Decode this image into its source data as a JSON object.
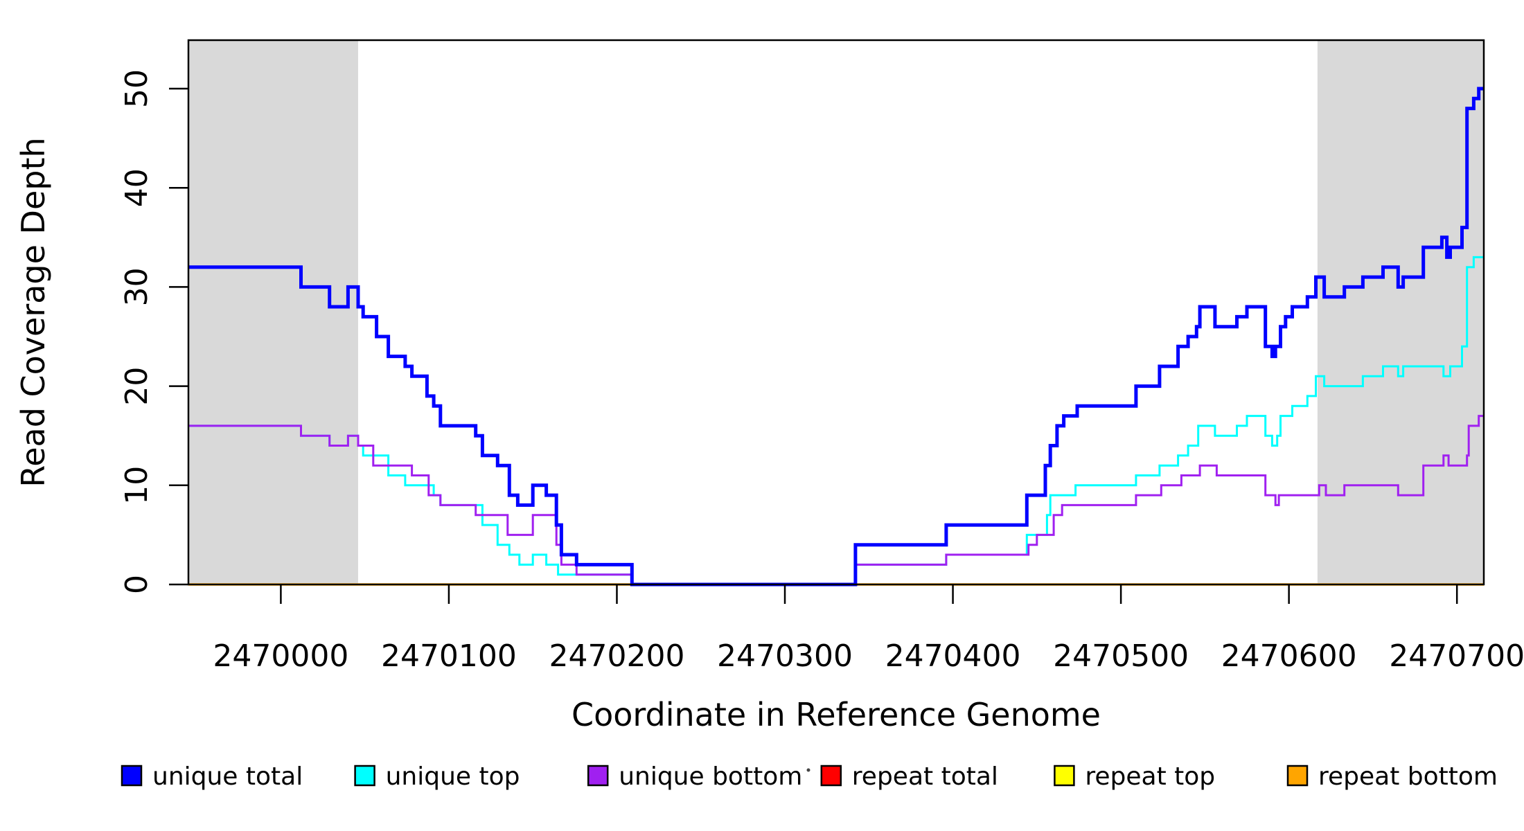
{
  "chart_data": {
    "type": "line",
    "subtype": "step-after",
    "title": "",
    "xlabel": "Coordinate in Reference Genome",
    "ylabel": "Read Coverage Depth",
    "xlim": [
      2469945,
      2470716
    ],
    "ylim": [
      0,
      55
    ],
    "x_ticks": [
      2470000,
      2470100,
      2470200,
      2470300,
      2470400,
      2470500,
      2470600,
      2470700
    ],
    "y_ticks": [
      0,
      10,
      20,
      30,
      40,
      50
    ],
    "grid": false,
    "background_color": "#ffffff",
    "band_color": "#d9d9d9",
    "axis_color": "#000000",
    "shaded_regions": [
      {
        "from": 2469945,
        "to": 2470046
      },
      {
        "from": 2470617,
        "to": 2470716
      }
    ],
    "draw_order": [
      "repeat total",
      "repeat top",
      "repeat bottom",
      "unique top",
      "unique bottom",
      "unique total"
    ],
    "series": [
      {
        "name": "unique total",
        "color": "#0000ff",
        "line_width": 5,
        "points": [
          [
            2469945,
            32
          ],
          [
            2470012,
            30
          ],
          [
            2470029,
            28
          ],
          [
            2470040,
            30
          ],
          [
            2470046,
            28
          ],
          [
            2470049,
            27
          ],
          [
            2470057,
            25
          ],
          [
            2470064,
            23
          ],
          [
            2470074,
            22
          ],
          [
            2470078,
            21
          ],
          [
            2470087,
            19
          ],
          [
            2470091,
            18
          ],
          [
            2470095,
            16
          ],
          [
            2470116,
            15
          ],
          [
            2470120,
            13
          ],
          [
            2470129,
            12
          ],
          [
            2470136,
            9
          ],
          [
            2470141,
            8
          ],
          [
            2470150,
            10
          ],
          [
            2470158,
            9
          ],
          [
            2470164,
            6
          ],
          [
            2470167,
            3
          ],
          [
            2470176,
            2
          ],
          [
            2470209,
            0
          ],
          [
            2470342,
            4
          ],
          [
            2470396,
            6
          ],
          [
            2470444,
            9
          ],
          [
            2470455,
            12
          ],
          [
            2470458,
            14
          ],
          [
            2470462,
            16
          ],
          [
            2470466,
            17
          ],
          [
            2470474,
            18
          ],
          [
            2470509,
            20
          ],
          [
            2470523,
            22
          ],
          [
            2470534,
            24
          ],
          [
            2470540,
            25
          ],
          [
            2470545,
            26
          ],
          [
            2470547,
            28
          ],
          [
            2470556,
            26
          ],
          [
            2470569,
            27
          ],
          [
            2470575,
            28
          ],
          [
            2470586,
            24
          ],
          [
            2470590,
            23
          ],
          [
            2470592,
            24
          ],
          [
            2470595,
            26
          ],
          [
            2470598,
            27
          ],
          [
            2470602,
            28
          ],
          [
            2470611,
            29
          ],
          [
            2470616,
            31
          ],
          [
            2470621,
            29
          ],
          [
            2470633,
            30
          ],
          [
            2470644,
            31
          ],
          [
            2470656,
            32
          ],
          [
            2470665,
            30
          ],
          [
            2470668,
            31
          ],
          [
            2470680,
            34
          ],
          [
            2470691,
            35
          ],
          [
            2470694,
            33
          ],
          [
            2470696,
            34
          ],
          [
            2470703,
            36
          ],
          [
            2470706,
            48
          ],
          [
            2470710,
            49
          ],
          [
            2470713,
            50
          ]
        ]
      },
      {
        "name": "unique top",
        "color": "#00ffff",
        "line_width": 3,
        "points": [
          [
            2469945,
            16
          ],
          [
            2470012,
            15
          ],
          [
            2470029,
            14
          ],
          [
            2470040,
            15
          ],
          [
            2470046,
            14
          ],
          [
            2470049,
            13
          ],
          [
            2470064,
            11
          ],
          [
            2470074,
            10
          ],
          [
            2470091,
            9
          ],
          [
            2470095,
            8
          ],
          [
            2470120,
            6
          ],
          [
            2470129,
            4
          ],
          [
            2470136,
            3
          ],
          [
            2470142,
            2
          ],
          [
            2470150,
            3
          ],
          [
            2470158,
            2
          ],
          [
            2470165,
            1
          ],
          [
            2470209,
            0
          ],
          [
            2470342,
            2
          ],
          [
            2470396,
            3
          ],
          [
            2470444,
            5
          ],
          [
            2470456,
            7
          ],
          [
            2470458,
            9
          ],
          [
            2470473,
            10
          ],
          [
            2470509,
            11
          ],
          [
            2470523,
            12
          ],
          [
            2470534,
            13
          ],
          [
            2470540,
            14
          ],
          [
            2470546,
            16
          ],
          [
            2470556,
            15
          ],
          [
            2470569,
            16
          ],
          [
            2470575,
            17
          ],
          [
            2470586,
            15
          ],
          [
            2470590,
            14
          ],
          [
            2470593,
            15
          ],
          [
            2470595,
            17
          ],
          [
            2470602,
            18
          ],
          [
            2470611,
            19
          ],
          [
            2470616,
            21
          ],
          [
            2470621,
            20
          ],
          [
            2470644,
            21
          ],
          [
            2470656,
            22
          ],
          [
            2470665,
            21
          ],
          [
            2470668,
            22
          ],
          [
            2470692,
            21
          ],
          [
            2470696,
            22
          ],
          [
            2470703,
            24
          ],
          [
            2470706,
            32
          ],
          [
            2470710,
            33
          ]
        ]
      },
      {
        "name": "unique bottom",
        "color": "#a020f0",
        "line_width": 3,
        "points": [
          [
            2469945,
            16
          ],
          [
            2470012,
            15
          ],
          [
            2470029,
            14
          ],
          [
            2470040,
            15
          ],
          [
            2470046,
            14
          ],
          [
            2470055,
            12
          ],
          [
            2470078,
            11
          ],
          [
            2470088,
            9
          ],
          [
            2470095,
            8
          ],
          [
            2470116,
            7
          ],
          [
            2470135,
            5
          ],
          [
            2470150,
            7
          ],
          [
            2470164,
            4
          ],
          [
            2470167,
            2
          ],
          [
            2470176,
            1
          ],
          [
            2470209,
            0
          ],
          [
            2470342,
            2
          ],
          [
            2470396,
            3
          ],
          [
            2470445,
            4
          ],
          [
            2470450,
            5
          ],
          [
            2470460,
            7
          ],
          [
            2470465,
            8
          ],
          [
            2470509,
            9
          ],
          [
            2470524,
            10
          ],
          [
            2470536,
            11
          ],
          [
            2470547,
            12
          ],
          [
            2470557,
            11
          ],
          [
            2470586,
            9
          ],
          [
            2470592,
            8
          ],
          [
            2470594,
            9
          ],
          [
            2470618,
            10
          ],
          [
            2470622,
            9
          ],
          [
            2470633,
            10
          ],
          [
            2470665,
            9
          ],
          [
            2470680,
            12
          ],
          [
            2470692,
            13
          ],
          [
            2470695,
            12
          ],
          [
            2470706,
            13
          ],
          [
            2470707,
            16
          ],
          [
            2470713,
            17
          ]
        ]
      },
      {
        "name": "repeat total",
        "color": "#ff0000",
        "line_width": 3,
        "points": [
          [
            2469945,
            0
          ]
        ]
      },
      {
        "name": "repeat top",
        "color": "#ffff00",
        "line_width": 3,
        "points": [
          [
            2469945,
            0
          ]
        ]
      },
      {
        "name": "repeat bottom",
        "color": "#ffa500",
        "line_width": 3.5,
        "points": [
          [
            2469945,
            0
          ]
        ]
      }
    ],
    "legend": {
      "position": "bottom",
      "entries": [
        {
          "label": "unique total",
          "color": "#0000ff"
        },
        {
          "label": "unique top",
          "color": "#00ffff"
        },
        {
          "label": "unique bottom",
          "color": "#a020f0"
        },
        {
          "label": "repeat total",
          "color": "#ff0000"
        },
        {
          "label": "repeat top",
          "color": "#ffff00"
        },
        {
          "label": "repeat bottom",
          "color": "#ffa500"
        }
      ]
    }
  }
}
